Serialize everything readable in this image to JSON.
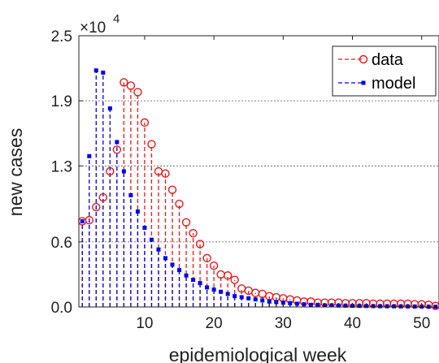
{
  "chart_data": {
    "type": "stem",
    "xlabel": "epidemiological week",
    "ylabel": "new cases",
    "multiplier": {
      "base": "×10",
      "exponent": "4"
    },
    "xlim": [
      0.5,
      52.5
    ],
    "ylim": [
      0,
      25000
    ],
    "xticks": [
      10,
      20,
      30,
      40,
      50
    ],
    "yticks": [
      0,
      6000,
      13000,
      19000,
      25000
    ],
    "ytick_labels": [
      "0.0",
      "0.6",
      "1.3",
      "1.9",
      "2.5"
    ],
    "grid": "horizontal-dashed",
    "legend_position": "top-right",
    "x": [
      1,
      2,
      3,
      4,
      5,
      6,
      7,
      8,
      9,
      10,
      11,
      12,
      13,
      14,
      15,
      16,
      17,
      18,
      19,
      20,
      21,
      22,
      23,
      24,
      25,
      26,
      27,
      28,
      29,
      30,
      31,
      32,
      33,
      34,
      35,
      36,
      37,
      38,
      39,
      40,
      41,
      42,
      43,
      44,
      45,
      46,
      47,
      48,
      49,
      50,
      51,
      52
    ],
    "series": [
      {
        "name": "data",
        "color": "#e41a1c",
        "marker": "circle",
        "values": [
          7900,
          8000,
          9200,
          10100,
          12500,
          14500,
          20700,
          20400,
          19800,
          17000,
          15000,
          12500,
          12300,
          10800,
          9500,
          7800,
          6800,
          5800,
          4500,
          3800,
          3000,
          2900,
          2500,
          1700,
          1500,
          1300,
          1200,
          1000,
          900,
          800,
          700,
          600,
          500,
          500,
          400,
          400,
          400,
          400,
          350,
          350,
          350,
          350,
          300,
          300,
          300,
          300,
          300,
          300,
          250,
          250,
          200,
          100
        ]
      },
      {
        "name": "model",
        "color": "#0000ee",
        "marker": "square",
        "values": [
          7900,
          13900,
          21800,
          21600,
          18300,
          15200,
          12500,
          10300,
          8800,
          7300,
          6200,
          5300,
          4500,
          3900,
          3400,
          2900,
          2500,
          2200,
          1800,
          1600,
          1400,
          1200,
          1000,
          900,
          800,
          700,
          600,
          500,
          450,
          400,
          350,
          300,
          250,
          200,
          200,
          150,
          150,
          130,
          120,
          110,
          100,
          90,
          80,
          70,
          60,
          60,
          50,
          50,
          40,
          40,
          30,
          20
        ]
      }
    ]
  }
}
